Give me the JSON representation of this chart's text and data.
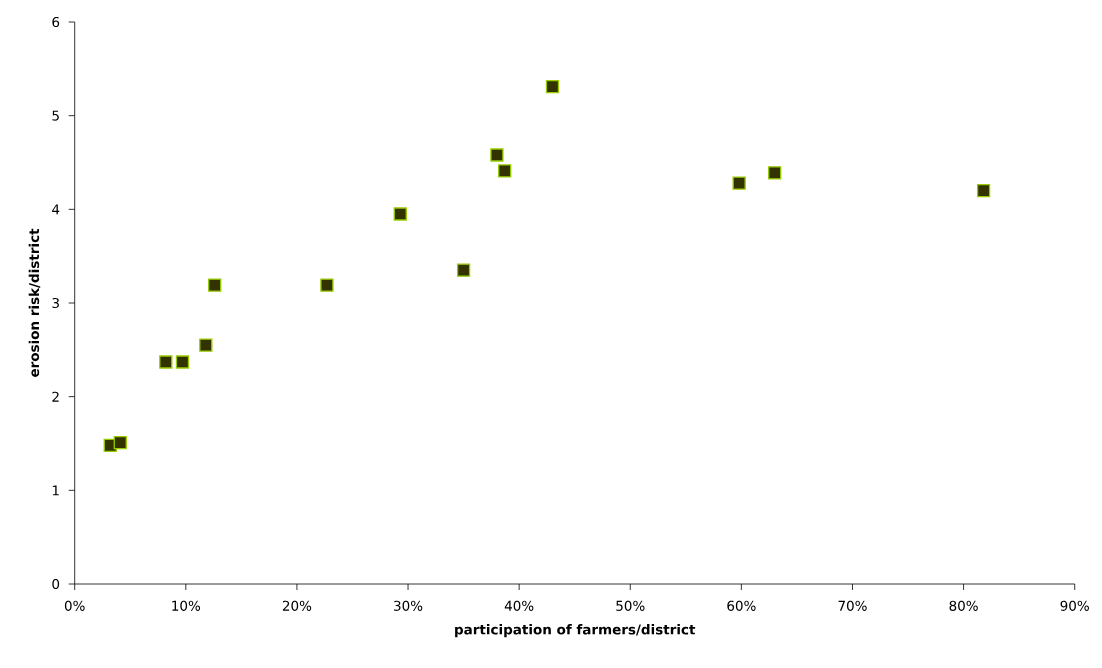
{
  "chart_data": {
    "type": "scatter",
    "xlabel": "participation of farmers/district",
    "ylabel": "erosion risk/district",
    "x": [
      3.2,
      4.1,
      8.2,
      9.7,
      11.8,
      12.6,
      22.7,
      29.3,
      35.0,
      38.0,
      38.7,
      43.0,
      59.8,
      63.0,
      81.8
    ],
    "series": [
      {
        "color": "#333300",
        "values": [
          1.48,
          1.51,
          2.37,
          2.37,
          2.55,
          3.19,
          3.19,
          3.95,
          3.35,
          4.58,
          4.41,
          5.31,
          4.28,
          4.39,
          4.2
        ]
      }
    ],
    "marker": "square",
    "xlim": [
      0,
      90
    ],
    "ylim": [
      0,
      6
    ],
    "xticks": [
      {
        "value": 0,
        "label": "0%"
      },
      {
        "value": 10,
        "label": "10%"
      },
      {
        "value": 20,
        "label": "20%"
      },
      {
        "value": 30,
        "label": "30%"
      },
      {
        "value": 40,
        "label": "40%"
      },
      {
        "value": 50,
        "label": "50%"
      },
      {
        "value": 60,
        "label": "60%"
      },
      {
        "value": 70,
        "label": "70%"
      },
      {
        "value": 80,
        "label": "80%"
      },
      {
        "value": 90,
        "label": "90%"
      }
    ],
    "yticks": [
      0,
      1,
      2,
      3,
      4,
      5,
      6
    ]
  }
}
